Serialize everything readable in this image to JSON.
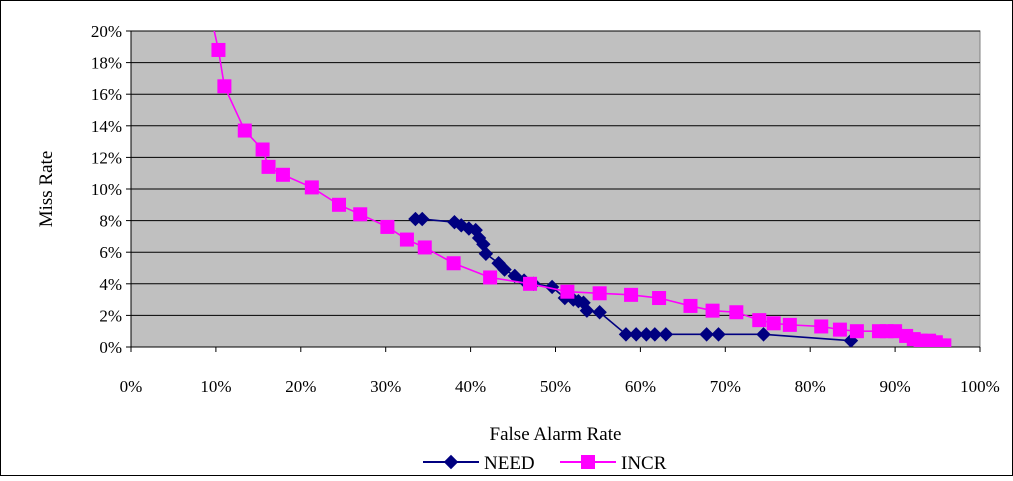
{
  "chart_data": {
    "type": "line",
    "title": "",
    "xlabel": "False Alarm Rate",
    "ylabel": "Miss Rate",
    "xlim": [
      0,
      1
    ],
    "ylim": [
      0,
      0.2
    ],
    "x_ticks": [
      "0%",
      "10%",
      "20%",
      "30%",
      "40%",
      "50%",
      "60%",
      "70%",
      "80%",
      "90%",
      "100%"
    ],
    "y_ticks": [
      "0%",
      "2%",
      "4%",
      "6%",
      "8%",
      "10%",
      "12%",
      "14%",
      "16%",
      "18%",
      "20%"
    ],
    "grid": "horizontal",
    "plot_background": "#c0c0c0",
    "legend_position": "bottom",
    "series": [
      {
        "name": "NEED",
        "color": "#000080",
        "marker": "diamond",
        "x": [
          0.335,
          0.343,
          0.381,
          0.389,
          0.398,
          0.406,
          0.41,
          0.415,
          0.418,
          0.433,
          0.44,
          0.452,
          0.463,
          0.474,
          0.496,
          0.511,
          0.521,
          0.527,
          0.533,
          0.537,
          0.552,
          0.583,
          0.595,
          0.607,
          0.617,
          0.63,
          0.678,
          0.692,
          0.745,
          0.848
        ],
        "y": [
          0.081,
          0.081,
          0.079,
          0.077,
          0.075,
          0.074,
          0.069,
          0.065,
          0.059,
          0.053,
          0.049,
          0.045,
          0.042,
          0.04,
          0.038,
          0.031,
          0.03,
          0.029,
          0.028,
          0.023,
          0.022,
          0.008,
          0.008,
          0.008,
          0.008,
          0.008,
          0.008,
          0.008,
          0.008,
          0.004
        ]
      },
      {
        "name": "INCR",
        "color": "#ff00ff",
        "marker": "square",
        "x": [
          0.096,
          0.103,
          0.11,
          0.134,
          0.155,
          0.162,
          0.179,
          0.213,
          0.245,
          0.27,
          0.302,
          0.325,
          0.346,
          0.38,
          0.423,
          0.47,
          0.514,
          0.552,
          0.589,
          0.622,
          0.659,
          0.685,
          0.713,
          0.74,
          0.757,
          0.776,
          0.813,
          0.835,
          0.855,
          0.881,
          0.89,
          0.9,
          0.913,
          0.922,
          0.93,
          0.94,
          0.948,
          0.953,
          0.958
        ],
        "y": [
          0.205,
          0.188,
          0.165,
          0.137,
          0.125,
          0.114,
          0.109,
          0.101,
          0.09,
          0.084,
          0.076,
          0.068,
          0.063,
          0.053,
          0.044,
          0.04,
          0.035,
          0.034,
          0.033,
          0.031,
          0.026,
          0.023,
          0.022,
          0.017,
          0.015,
          0.014,
          0.013,
          0.011,
          0.01,
          0.01,
          0.01,
          0.01,
          0.007,
          0.005,
          0.004,
          0.004,
          0.003,
          0.001,
          0.001
        ]
      }
    ]
  }
}
